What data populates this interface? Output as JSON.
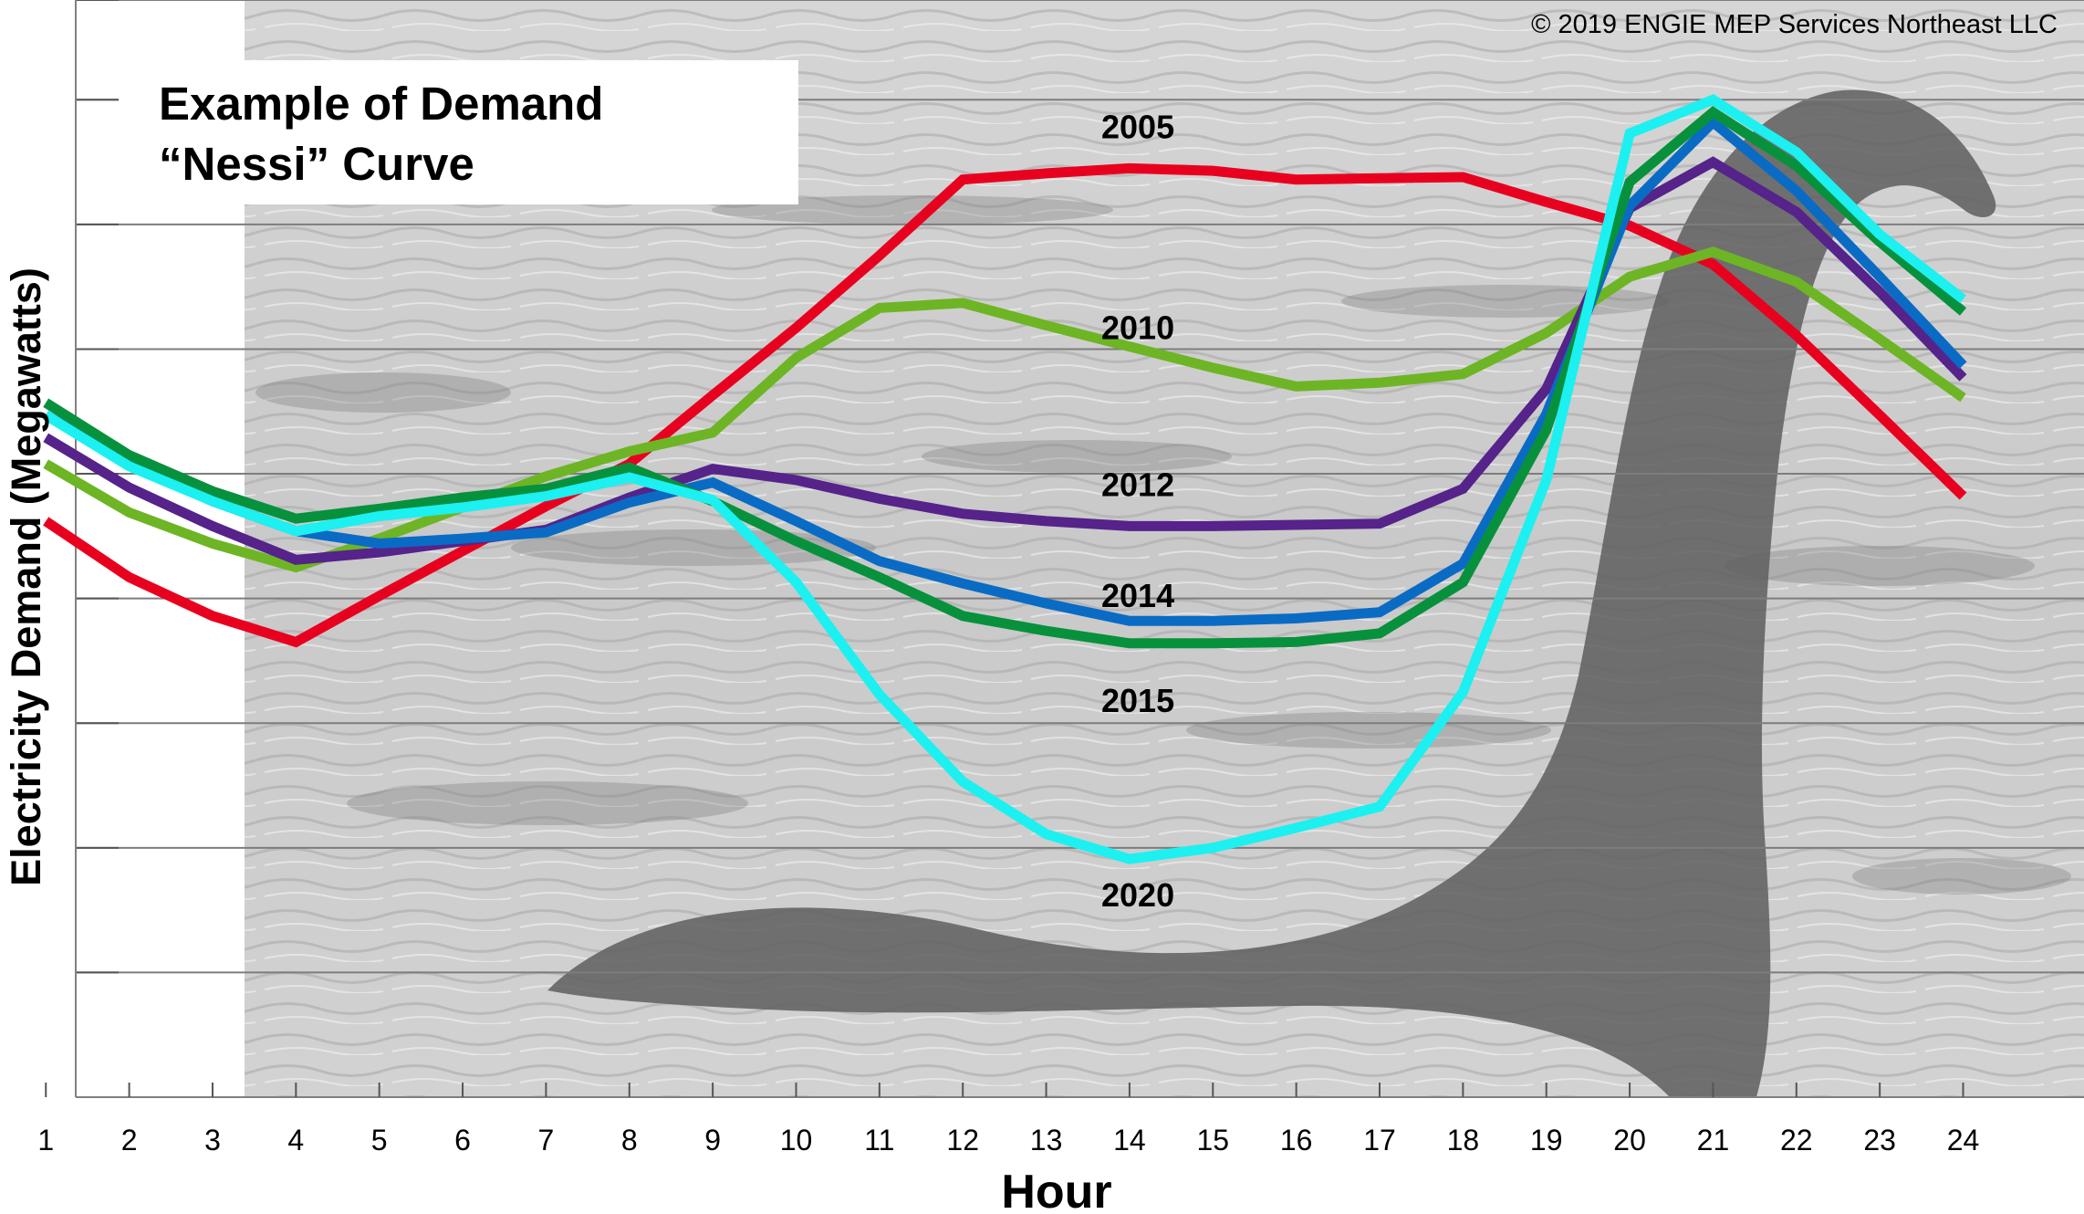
{
  "copyright": "© 2019 ENGIE MEP Services Northeast LLC",
  "title_lines": [
    "Example of Demand",
    "“Nessi” Curve"
  ],
  "colors": {
    "2005": "#e8001f",
    "2010": "#6db524",
    "2012": "#55238a",
    "2014": "#0a6bc4",
    "2015": "#08913d",
    "2020": "#1df0f0"
  },
  "chart_data": {
    "type": "line",
    "title": "Example of Demand “Nessi” Curve",
    "xlabel": "Hour",
    "ylabel": "Electricity Demand (Megawatts)",
    "grid": true,
    "x": [
      1,
      2,
      3,
      4,
      5,
      6,
      7,
      8,
      9,
      10,
      11,
      12,
      13,
      14,
      15,
      16,
      17,
      18,
      19,
      20,
      21,
      22,
      23,
      24
    ],
    "x_tick_labels": [
      "1",
      "2",
      "3",
      "4",
      "5",
      "6",
      "7",
      "8",
      "9",
      "10",
      "11",
      "12",
      "13",
      "14",
      "15",
      "16",
      "17",
      "18",
      "19",
      "20",
      "21",
      "22",
      "23",
      "24"
    ],
    "series": [
      {
        "name": "2005",
        "values": [
          4.62,
          4.17,
          3.86,
          3.65,
          4.02,
          4.38,
          4.74,
          5.08,
          5.63,
          6.17,
          6.75,
          7.36,
          7.41,
          7.45,
          7.43,
          7.36,
          7.37,
          7.38,
          7.18,
          6.99,
          6.68,
          6.11,
          5.47,
          4.82
        ]
      },
      {
        "name": "2010",
        "values": [
          5.08,
          4.69,
          4.44,
          4.25,
          4.48,
          4.73,
          4.98,
          5.18,
          5.33,
          5.93,
          6.33,
          6.37,
          6.19,
          6.02,
          5.85,
          5.7,
          5.73,
          5.8,
          6.13,
          6.58,
          6.78,
          6.54,
          6.08,
          5.61
        ]
      },
      {
        "name": "2012",
        "values": [
          5.29,
          4.89,
          4.58,
          4.31,
          4.37,
          4.46,
          4.55,
          4.81,
          5.04,
          4.95,
          4.8,
          4.68,
          4.62,
          4.58,
          4.58,
          4.59,
          4.6,
          4.88,
          5.68,
          7.13,
          7.5,
          7.1,
          6.46,
          5.77
        ]
      },
      {
        "name": "2014",
        "values": [
          5.47,
          5.08,
          4.78,
          4.54,
          4.44,
          4.48,
          4.53,
          4.77,
          4.93,
          4.62,
          4.3,
          4.12,
          3.96,
          3.82,
          3.82,
          3.84,
          3.89,
          4.28,
          5.48,
          7.15,
          7.82,
          7.27,
          6.58,
          5.87
        ]
      },
      {
        "name": "2015",
        "values": [
          5.57,
          5.15,
          4.86,
          4.64,
          4.72,
          4.81,
          4.88,
          5.05,
          4.78,
          4.46,
          4.17,
          3.86,
          3.74,
          3.64,
          3.64,
          3.65,
          3.72,
          4.13,
          5.35,
          7.34,
          7.9,
          7.47,
          6.86,
          6.3
        ]
      },
      {
        "name": "2020",
        "values": [
          5.47,
          5.06,
          4.78,
          4.54,
          4.66,
          4.73,
          4.82,
          4.97,
          4.79,
          4.13,
          3.23,
          2.53,
          2.11,
          1.91,
          2.0,
          2.16,
          2.33,
          3.25,
          4.95,
          7.73,
          8.0,
          7.58,
          6.92,
          6.4
        ]
      }
    ],
    "ylim": [
      0,
      8.8
    ],
    "xlim": [
      0.45,
      25.45
    ],
    "y_gridlines": [
      1,
      2,
      3,
      4,
      5,
      6,
      7,
      8,
      8.8
    ]
  },
  "label_points": [
    {
      "series": "2005",
      "x": 14.1,
      "y": 7.69
    },
    {
      "series": "2010",
      "x": 14.1,
      "y": 6.08
    },
    {
      "series": "2012",
      "x": 14.1,
      "y": 4.82
    },
    {
      "series": "2014",
      "x": 14.1,
      "y": 3.93
    },
    {
      "series": "2015",
      "x": 14.1,
      "y": 3.09
    },
    {
      "series": "2020",
      "x": 14.1,
      "y": 1.53
    }
  ]
}
